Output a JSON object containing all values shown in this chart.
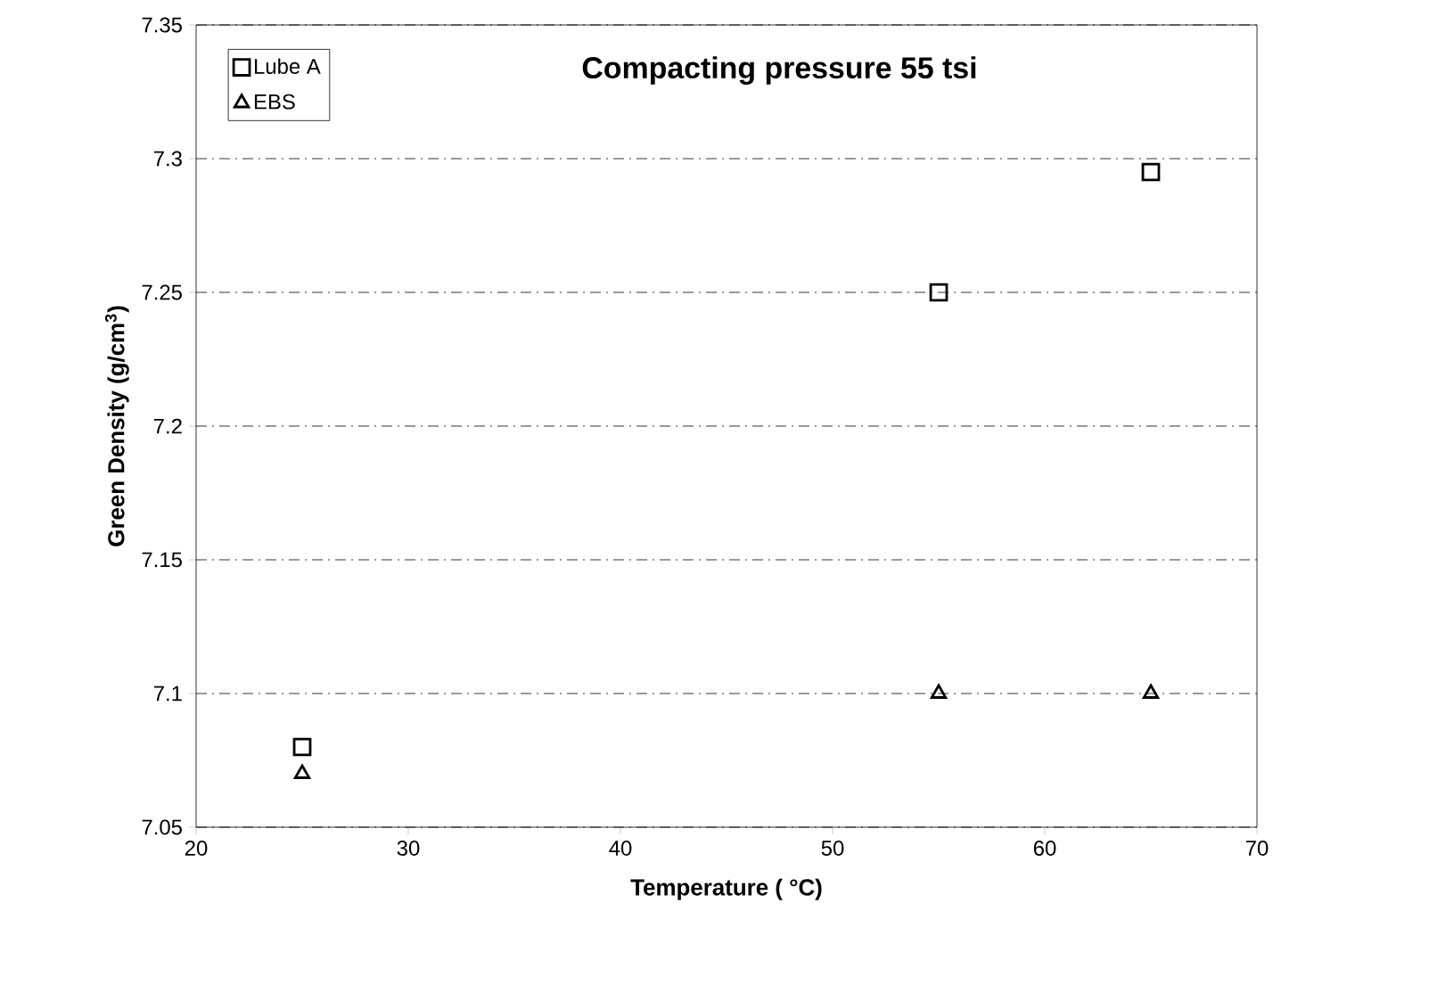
{
  "chart_data": {
    "type": "scatter",
    "title": "Compacting pressure 55 tsi",
    "xlabel": "Temperature ( °C)",
    "ylabel": "Green Density (g/cm$^{3}$)",
    "x": [
      25,
      55,
      65
    ],
    "series": [
      {
        "name": "Lube A",
        "color": "#000000",
        "marker": "square",
        "values": [
          7.08,
          7.25,
          7.295
        ]
      },
      {
        "name": "EBS",
        "color": "#000000",
        "marker": "triangle",
        "values": [
          7.07,
          7.1,
          7.1
        ]
      }
    ],
    "xlim": [
      20,
      70
    ],
    "xticks": [
      20,
      30,
      40,
      50,
      60,
      70
    ],
    "ylim": [
      7.05,
      7.35
    ],
    "yticks": [
      7.05,
      7.1,
      7.15,
      7.2,
      7.25,
      7.3,
      7.35
    ],
    "grid": "y",
    "legend": "top left"
  }
}
